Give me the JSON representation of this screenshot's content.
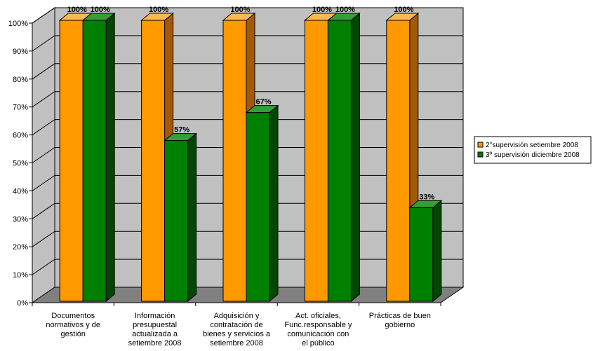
{
  "chart_data": {
    "type": "bar",
    "categories": [
      [
        "Documentos",
        "normativos y de",
        "gestión"
      ],
      [
        "Información",
        "presupuestal",
        "actualizada a",
        "setiembre 2008"
      ],
      [
        "Adquisición y",
        "contratación de",
        "bienes y servicios a",
        "setiembre 2008"
      ],
      [
        "Act. oficiales,",
        "Func.responsable y",
        "comunicación con",
        "el público"
      ],
      [
        "Prácticas de buen",
        "gobierno"
      ]
    ],
    "series": [
      {
        "name": "2°supervisión setiembre 2008",
        "values": [
          100,
          100,
          100,
          100,
          100
        ],
        "labels": [
          "100%",
          "100%",
          "100%",
          "100%",
          "100%"
        ],
        "color": "#FF9900",
        "side_color": "#A35A00",
        "top_color": "#FFB84D"
      },
      {
        "name": "3º supervisión diciembre 2008",
        "values": [
          100,
          57,
          67,
          100,
          33
        ],
        "labels": [
          "100%",
          "57%",
          "67%",
          "100%",
          "33%"
        ],
        "color": "#008000",
        "side_color": "#004800",
        "top_color": "#33A033"
      }
    ],
    "ylim": [
      0,
      100
    ],
    "yticks": [
      "0%",
      "10%",
      "20%",
      "30%",
      "40%",
      "50%",
      "60%",
      "70%",
      "80%",
      "90%",
      "100%"
    ],
    "grid": true,
    "legend_position": "right",
    "colors": {
      "plot_wall": "#C0C0C0",
      "plot_floor": "#808080",
      "grid": "#000000"
    }
  }
}
